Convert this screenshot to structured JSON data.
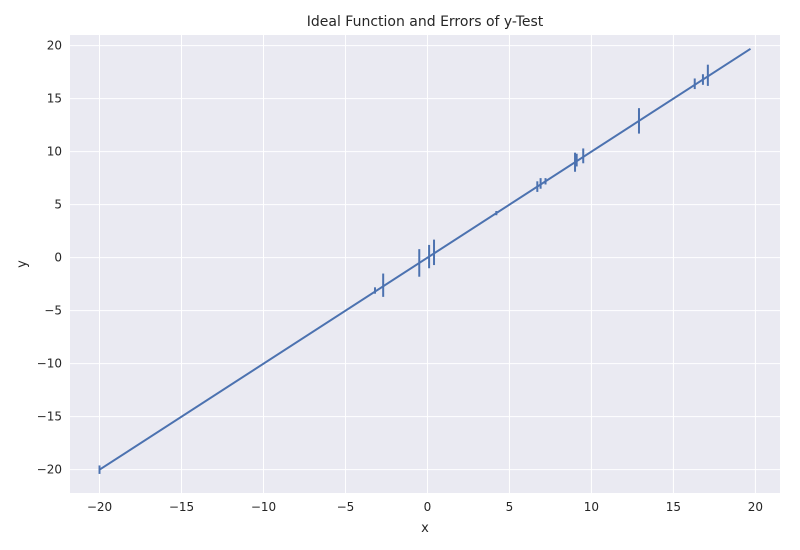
{
  "chart_data": {
    "type": "line",
    "title": "Ideal Function and Errors of y-Test",
    "xlabel": "x",
    "ylabel": "y",
    "xlim": [
      -21.8,
      21.5
    ],
    "ylim": [
      -22.2,
      21.0
    ],
    "xticks": [
      -20,
      -15,
      -10,
      -5,
      0,
      5,
      10,
      15,
      20
    ],
    "yticks": [
      -20,
      -15,
      -10,
      -5,
      0,
      5,
      10,
      15,
      20
    ],
    "xtick_labels": [
      "−20",
      "−15",
      "−10",
      "−5",
      "0",
      "5",
      "10",
      "15",
      "20"
    ],
    "ytick_labels": [
      "−20",
      "−15",
      "−10",
      "−5",
      "0",
      "5",
      "10",
      "15",
      "20"
    ],
    "grid": true,
    "style": "seaborn-darkgrid",
    "colors": {
      "background": "#EAEAF2",
      "grid": "#FFFFFF",
      "series": "#4C72B0"
    },
    "series": [
      {
        "kind": "line",
        "x": [
          -20,
          19.7
        ],
        "y": [
          -20,
          19.7
        ]
      },
      {
        "kind": "errorbars",
        "x": [
          -20.0,
          -3.2,
          -2.7,
          -0.5,
          0.1,
          0.4,
          4.2,
          6.7,
          6.9,
          7.2,
          9.0,
          9.1,
          9.5,
          12.9,
          16.3,
          16.8,
          17.1
        ],
        "y": [
          -20.0,
          -3.1,
          -2.6,
          -0.5,
          0.1,
          0.5,
          4.2,
          6.7,
          7.0,
          7.2,
          9.0,
          9.2,
          9.6,
          12.9,
          16.4,
          16.8,
          17.2
        ],
        "yerr": [
          0.4,
          0.3,
          1.1,
          1.3,
          1.1,
          1.2,
          0.2,
          0.5,
          0.5,
          0.3,
          0.9,
          0.6,
          0.7,
          1.2,
          0.5,
          0.5,
          1.0
        ]
      }
    ]
  }
}
